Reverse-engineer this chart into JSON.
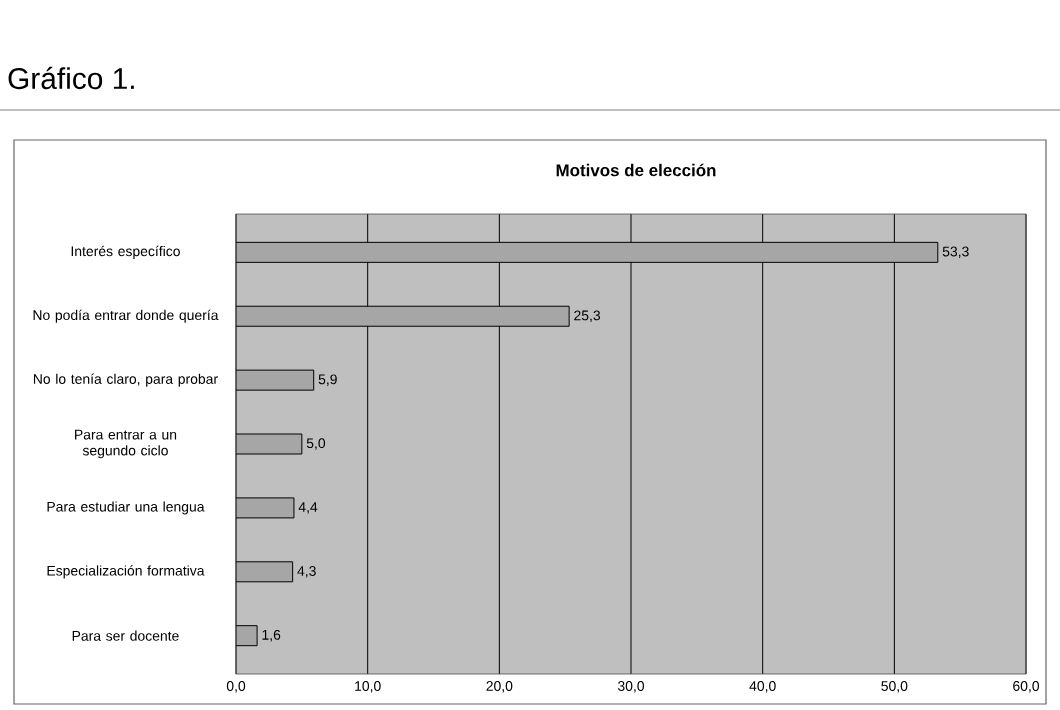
{
  "chart_data": {
    "type": "bar",
    "orientation": "horizontal",
    "title": "Gráfico 1.",
    "subtitle": "Motivos de elección",
    "categories": [
      "Interés específico",
      "No podía entrar donde quería",
      "No lo tenía claro, para probar",
      "Para entrar a un segundo ciclo",
      "Para estudiar una lengua",
      "Especialización formativa",
      "Para ser docente"
    ],
    "values": [
      53.3,
      25.3,
      5.9,
      5.0,
      4.4,
      4.3,
      1.6
    ],
    "value_labels": [
      "53,3",
      "25,3",
      "5,9",
      "5,0",
      "4,4",
      "4,3",
      "1,6"
    ],
    "color": "#a6a6a6",
    "xlim": [
      0,
      60
    ],
    "xticks": [
      {
        "value": 0,
        "label": "0,0"
      },
      {
        "value": 10,
        "label": "10,0"
      },
      {
        "value": 20,
        "label": "20,0"
      },
      {
        "value": 30,
        "label": "30,0"
      },
      {
        "value": 40,
        "label": "40,0"
      },
      {
        "value": 50,
        "label": "50,0"
      },
      {
        "value": 60,
        "label": "60,0"
      }
    ],
    "grid": "x"
  }
}
